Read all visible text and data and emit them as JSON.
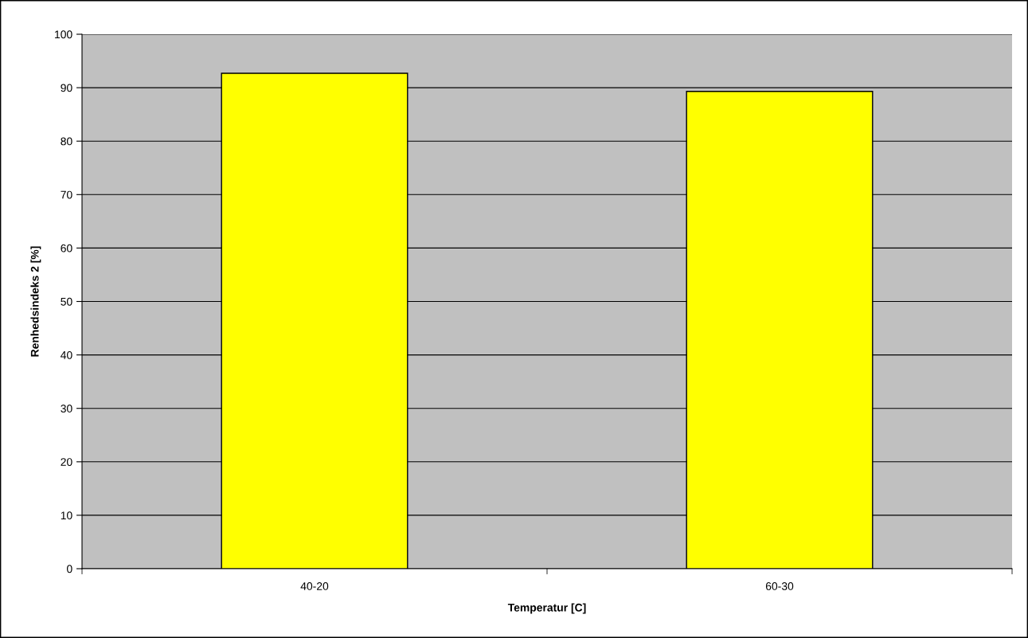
{
  "chart_data": {
    "type": "bar",
    "xlabel": "Temperatur [C]",
    "ylabel": "Renhedsindeks 2 [%]",
    "categories": [
      "40-20",
      "60-30"
    ],
    "values": [
      92.7,
      89.3
    ],
    "color": "#ffff00",
    "ylim": [
      0,
      100
    ],
    "yticks": [
      0,
      10,
      20,
      30,
      40,
      50,
      60,
      70,
      80,
      90,
      100
    ],
    "grid": "y",
    "legend": false
  }
}
